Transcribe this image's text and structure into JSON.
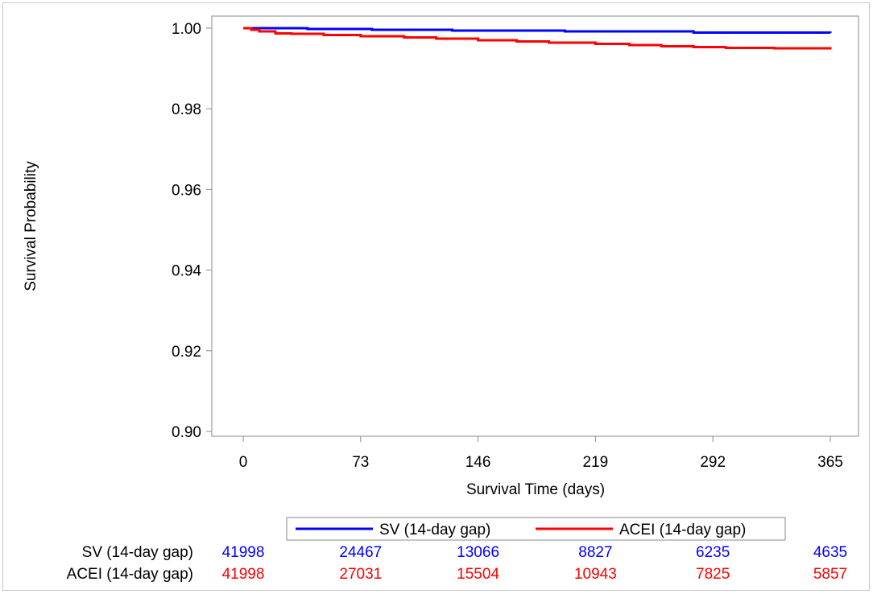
{
  "chart_data": {
    "type": "line",
    "xlabel": "Survival Time (days)",
    "ylabel": "Survival Probability",
    "xlim": [
      0,
      365
    ],
    "ylim": [
      0.9,
      1.0
    ],
    "xticks": [
      0,
      73,
      146,
      219,
      292,
      365
    ],
    "xtick_labels": [
      "0",
      "73",
      "146",
      "219",
      "292",
      "365"
    ],
    "yticks": [
      0.9,
      0.92,
      0.94,
      0.96,
      0.98,
      1.0
    ],
    "ytick_labels": [
      "0.90",
      "0.92",
      "0.94",
      "0.96",
      "0.98",
      "1.00"
    ],
    "grid": false,
    "legend_position": "bottom",
    "series": [
      {
        "name": "SV (14-day gap)",
        "color": "#0000ff",
        "x": [
          0,
          40,
          80,
          130,
          200,
          280,
          365
        ],
        "y": [
          1.0,
          0.9998,
          0.9996,
          0.9994,
          0.9992,
          0.9989,
          0.9988
        ]
      },
      {
        "name": "ACEI (14-day gap)",
        "color": "#ff0000",
        "x": [
          0,
          5,
          10,
          20,
          30,
          50,
          73,
          100,
          120,
          146,
          170,
          190,
          219,
          240,
          260,
          280,
          300,
          330,
          365
        ],
        "y": [
          1.0,
          0.9996,
          0.9992,
          0.9987,
          0.9986,
          0.9983,
          0.998,
          0.9977,
          0.9974,
          0.997,
          0.9967,
          0.9964,
          0.9961,
          0.9958,
          0.9955,
          0.9953,
          0.9951,
          0.995,
          0.9947
        ]
      }
    ],
    "risk_table": {
      "rows": [
        {
          "label": "SV (14-day gap)",
          "color": "#0000ff",
          "values": [
            "41998",
            "24467",
            "13066",
            "8827",
            "6235",
            "4635"
          ]
        },
        {
          "label": "ACEI (14-day gap)",
          "color": "#ff0000",
          "values": [
            "41998",
            "27031",
            "15504",
            "10943",
            "7825",
            "5857"
          ]
        }
      ]
    }
  }
}
